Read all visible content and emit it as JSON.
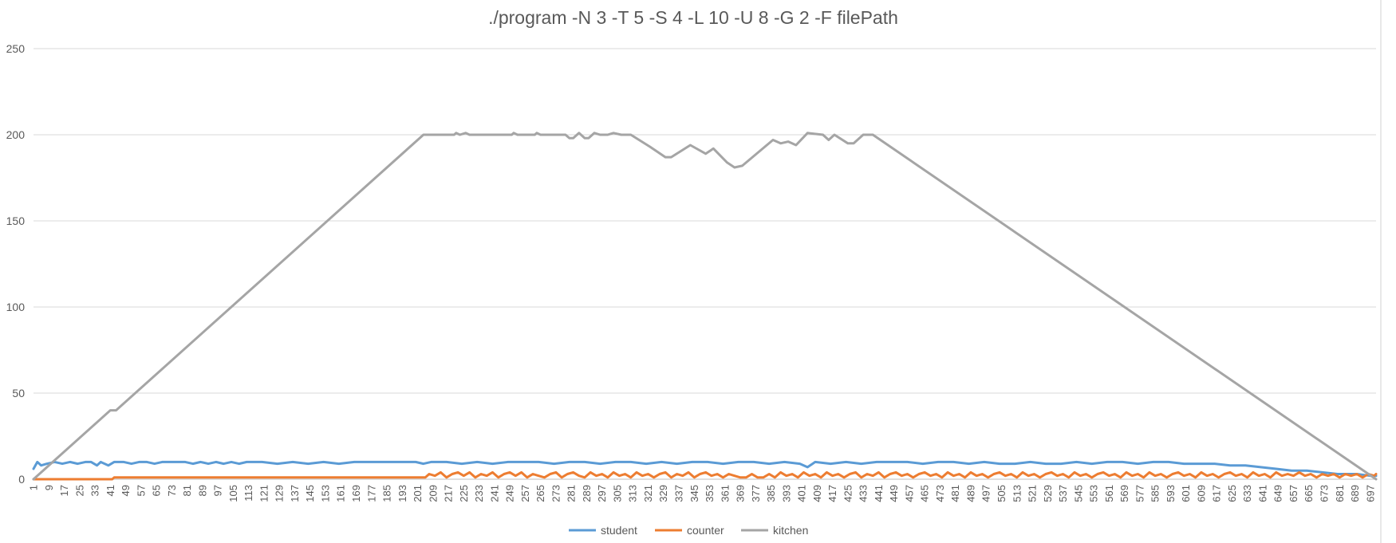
{
  "chart_data": {
    "type": "line",
    "title": "./program -N 3 -T 5 -S 4 -L 10 -U 8 -G 2 -F filePath",
    "xlabel": "",
    "ylabel": "",
    "x_range": [
      1,
      700
    ],
    "ylim": [
      0,
      250
    ],
    "yticks": [
      0,
      50,
      100,
      150,
      200,
      250
    ],
    "xtick_start": 1,
    "xtick_step": 8,
    "grid": true,
    "legend_position": "bottom",
    "series": [
      {
        "name": "student",
        "color": "#5b9bd5",
        "points": [
          [
            1,
            6
          ],
          [
            3,
            10
          ],
          [
            5,
            8
          ],
          [
            8,
            9
          ],
          [
            12,
            10
          ],
          [
            16,
            9
          ],
          [
            20,
            10
          ],
          [
            24,
            9
          ],
          [
            28,
            10
          ],
          [
            31,
            10
          ],
          [
            34,
            8
          ],
          [
            36,
            10
          ],
          [
            40,
            8
          ],
          [
            43,
            10
          ],
          [
            48,
            10
          ],
          [
            52,
            9
          ],
          [
            56,
            10
          ],
          [
            60,
            10
          ],
          [
            64,
            9
          ],
          [
            68,
            10
          ],
          [
            72,
            10
          ],
          [
            80,
            10
          ],
          [
            84,
            9
          ],
          [
            88,
            10
          ],
          [
            92,
            9
          ],
          [
            96,
            10
          ],
          [
            100,
            9
          ],
          [
            104,
            10
          ],
          [
            108,
            9
          ],
          [
            112,
            10
          ],
          [
            120,
            10
          ],
          [
            128,
            9
          ],
          [
            136,
            10
          ],
          [
            144,
            9
          ],
          [
            152,
            10
          ],
          [
            160,
            9
          ],
          [
            168,
            10
          ],
          [
            176,
            10
          ],
          [
            184,
            10
          ],
          [
            192,
            10
          ],
          [
            200,
            10
          ],
          [
            204,
            9
          ],
          [
            208,
            10
          ],
          [
            216,
            10
          ],
          [
            224,
            9
          ],
          [
            232,
            10
          ],
          [
            240,
            9
          ],
          [
            248,
            10
          ],
          [
            256,
            10
          ],
          [
            264,
            10
          ],
          [
            272,
            9
          ],
          [
            280,
            10
          ],
          [
            288,
            10
          ],
          [
            296,
            9
          ],
          [
            304,
            10
          ],
          [
            312,
            10
          ],
          [
            320,
            9
          ],
          [
            328,
            10
          ],
          [
            336,
            9
          ],
          [
            344,
            10
          ],
          [
            352,
            10
          ],
          [
            360,
            9
          ],
          [
            368,
            10
          ],
          [
            376,
            10
          ],
          [
            384,
            9
          ],
          [
            392,
            10
          ],
          [
            400,
            9
          ],
          [
            404,
            7
          ],
          [
            408,
            10
          ],
          [
            416,
            9
          ],
          [
            424,
            10
          ],
          [
            432,
            9
          ],
          [
            440,
            10
          ],
          [
            448,
            10
          ],
          [
            456,
            10
          ],
          [
            464,
            9
          ],
          [
            472,
            10
          ],
          [
            480,
            10
          ],
          [
            488,
            9
          ],
          [
            496,
            10
          ],
          [
            504,
            9
          ],
          [
            512,
            9
          ],
          [
            520,
            10
          ],
          [
            528,
            9
          ],
          [
            536,
            9
          ],
          [
            544,
            10
          ],
          [
            552,
            9
          ],
          [
            560,
            10
          ],
          [
            568,
            10
          ],
          [
            576,
            9
          ],
          [
            584,
            10
          ],
          [
            592,
            10
          ],
          [
            600,
            9
          ],
          [
            608,
            9
          ],
          [
            616,
            9
          ],
          [
            624,
            8
          ],
          [
            632,
            8
          ],
          [
            640,
            7
          ],
          [
            648,
            6
          ],
          [
            656,
            5
          ],
          [
            664,
            5
          ],
          [
            672,
            4
          ],
          [
            680,
            3
          ],
          [
            690,
            3
          ],
          [
            697,
            2
          ],
          [
            700,
            2
          ]
        ]
      },
      {
        "name": "counter",
        "color": "#ed7d31",
        "points": [
          [
            1,
            0
          ],
          [
            42,
            0
          ],
          [
            43,
            1
          ],
          [
            205,
            1
          ],
          [
            207,
            3
          ],
          [
            210,
            2
          ],
          [
            213,
            4
          ],
          [
            216,
            1
          ],
          [
            219,
            3
          ],
          [
            222,
            4
          ],
          [
            225,
            2
          ],
          [
            228,
            4
          ],
          [
            231,
            1
          ],
          [
            234,
            3
          ],
          [
            237,
            2
          ],
          [
            240,
            4
          ],
          [
            243,
            1
          ],
          [
            246,
            3
          ],
          [
            249,
            4
          ],
          [
            252,
            2
          ],
          [
            255,
            4
          ],
          [
            258,
            1
          ],
          [
            261,
            3
          ],
          [
            264,
            2
          ],
          [
            267,
            1
          ],
          [
            270,
            3
          ],
          [
            273,
            4
          ],
          [
            276,
            1
          ],
          [
            279,
            3
          ],
          [
            282,
            4
          ],
          [
            285,
            2
          ],
          [
            288,
            1
          ],
          [
            291,
            4
          ],
          [
            294,
            2
          ],
          [
            297,
            3
          ],
          [
            300,
            1
          ],
          [
            303,
            4
          ],
          [
            306,
            2
          ],
          [
            309,
            3
          ],
          [
            312,
            1
          ],
          [
            315,
            4
          ],
          [
            318,
            2
          ],
          [
            321,
            3
          ],
          [
            324,
            1
          ],
          [
            327,
            3
          ],
          [
            330,
            4
          ],
          [
            333,
            1
          ],
          [
            336,
            3
          ],
          [
            339,
            2
          ],
          [
            342,
            4
          ],
          [
            345,
            1
          ],
          [
            348,
            3
          ],
          [
            351,
            4
          ],
          [
            354,
            2
          ],
          [
            357,
            3
          ],
          [
            360,
            1
          ],
          [
            363,
            3
          ],
          [
            366,
            2
          ],
          [
            369,
            1
          ],
          [
            372,
            1
          ],
          [
            375,
            3
          ],
          [
            378,
            1
          ],
          [
            381,
            1
          ],
          [
            384,
            3
          ],
          [
            387,
            1
          ],
          [
            390,
            4
          ],
          [
            393,
            2
          ],
          [
            396,
            3
          ],
          [
            399,
            1
          ],
          [
            402,
            4
          ],
          [
            405,
            2
          ],
          [
            408,
            3
          ],
          [
            411,
            1
          ],
          [
            414,
            4
          ],
          [
            417,
            2
          ],
          [
            420,
            3
          ],
          [
            423,
            1
          ],
          [
            426,
            3
          ],
          [
            429,
            4
          ],
          [
            432,
            1
          ],
          [
            435,
            3
          ],
          [
            438,
            2
          ],
          [
            441,
            4
          ],
          [
            444,
            1
          ],
          [
            447,
            3
          ],
          [
            450,
            4
          ],
          [
            453,
            2
          ],
          [
            456,
            3
          ],
          [
            459,
            1
          ],
          [
            462,
            3
          ],
          [
            465,
            4
          ],
          [
            468,
            2
          ],
          [
            471,
            3
          ],
          [
            474,
            1
          ],
          [
            477,
            4
          ],
          [
            480,
            2
          ],
          [
            483,
            3
          ],
          [
            486,
            1
          ],
          [
            489,
            4
          ],
          [
            492,
            2
          ],
          [
            495,
            3
          ],
          [
            498,
            1
          ],
          [
            501,
            3
          ],
          [
            504,
            4
          ],
          [
            507,
            2
          ],
          [
            510,
            3
          ],
          [
            513,
            1
          ],
          [
            516,
            4
          ],
          [
            519,
            2
          ],
          [
            522,
            3
          ],
          [
            525,
            1
          ],
          [
            528,
            3
          ],
          [
            531,
            4
          ],
          [
            534,
            2
          ],
          [
            537,
            3
          ],
          [
            540,
            1
          ],
          [
            543,
            4
          ],
          [
            546,
            2
          ],
          [
            549,
            3
          ],
          [
            552,
            1
          ],
          [
            555,
            3
          ],
          [
            558,
            4
          ],
          [
            561,
            2
          ],
          [
            564,
            3
          ],
          [
            567,
            1
          ],
          [
            570,
            4
          ],
          [
            573,
            2
          ],
          [
            576,
            3
          ],
          [
            579,
            1
          ],
          [
            582,
            4
          ],
          [
            585,
            2
          ],
          [
            588,
            3
          ],
          [
            591,
            1
          ],
          [
            594,
            3
          ],
          [
            597,
            4
          ],
          [
            600,
            2
          ],
          [
            603,
            3
          ],
          [
            606,
            1
          ],
          [
            609,
            4
          ],
          [
            612,
            2
          ],
          [
            615,
            3
          ],
          [
            618,
            1
          ],
          [
            621,
            3
          ],
          [
            624,
            4
          ],
          [
            627,
            2
          ],
          [
            630,
            3
          ],
          [
            633,
            1
          ],
          [
            636,
            4
          ],
          [
            639,
            2
          ],
          [
            642,
            3
          ],
          [
            645,
            1
          ],
          [
            648,
            4
          ],
          [
            651,
            2
          ],
          [
            654,
            3
          ],
          [
            657,
            2
          ],
          [
            660,
            4
          ],
          [
            663,
            2
          ],
          [
            666,
            3
          ],
          [
            669,
            1
          ],
          [
            672,
            3
          ],
          [
            675,
            2
          ],
          [
            678,
            3
          ],
          [
            681,
            1
          ],
          [
            684,
            3
          ],
          [
            687,
            2
          ],
          [
            690,
            3
          ],
          [
            693,
            1
          ],
          [
            696,
            3
          ],
          [
            699,
            2
          ],
          [
            700,
            3
          ]
        ]
      },
      {
        "name": "kitchen",
        "color": "#a5a5a5",
        "points": [
          [
            1,
            0
          ],
          [
            41,
            40
          ],
          [
            44,
            40
          ],
          [
            204,
            200
          ],
          [
            220,
            200
          ],
          [
            221,
            201
          ],
          [
            223,
            200
          ],
          [
            226,
            201
          ],
          [
            228,
            200
          ],
          [
            250,
            200
          ],
          [
            251,
            201
          ],
          [
            253,
            200
          ],
          [
            262,
            200
          ],
          [
            263,
            201
          ],
          [
            265,
            200
          ],
          [
            278,
            200
          ],
          [
            280,
            198
          ],
          [
            282,
            198
          ],
          [
            285,
            201
          ],
          [
            288,
            198
          ],
          [
            290,
            198
          ],
          [
            293,
            201
          ],
          [
            296,
            200
          ],
          [
            300,
            200
          ],
          [
            303,
            201
          ],
          [
            307,
            200
          ],
          [
            312,
            200
          ],
          [
            322,
            193
          ],
          [
            330,
            187
          ],
          [
            333,
            187
          ],
          [
            343,
            194
          ],
          [
            351,
            189
          ],
          [
            355,
            192
          ],
          [
            362,
            184
          ],
          [
            366,
            181
          ],
          [
            370,
            182
          ],
          [
            386,
            197
          ],
          [
            390,
            195
          ],
          [
            394,
            196
          ],
          [
            398,
            194
          ],
          [
            404,
            201
          ],
          [
            412,
            200
          ],
          [
            415,
            197
          ],
          [
            418,
            200
          ],
          [
            425,
            195
          ],
          [
            428,
            195
          ],
          [
            433,
            200
          ],
          [
            438,
            200
          ],
          [
            700,
            0
          ]
        ]
      }
    ]
  }
}
